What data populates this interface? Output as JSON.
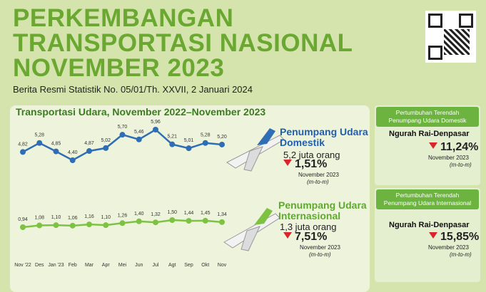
{
  "header": {
    "title_lines": [
      "PERKEMBANGAN",
      "TRANSPORTASI NASIONAL",
      "NOVEMBER 2023"
    ],
    "subtitle": "Berita Resmi Statistik No. 05/01/Th. XXVII, 2 Januari 2024"
  },
  "chart_data": {
    "type": "line",
    "title": "Transportasi Udara, November 2022–November 2023",
    "categories": [
      "Nov '22",
      "Des",
      "Jan '23",
      "Feb",
      "Mar",
      "Apr",
      "Mei",
      "Jun",
      "Jul",
      "Agt",
      "Sep",
      "Okt",
      "Nov"
    ],
    "series": [
      {
        "name": "Penumpang Udara Domestik",
        "color": "#2f6db5",
        "values": [
          4.82,
          5.28,
          4.85,
          4.4,
          4.87,
          5.02,
          5.7,
          5.46,
          5.96,
          5.21,
          5.01,
          5.28,
          5.2
        ],
        "value_labels": [
          "4,82",
          "5,28",
          "4,85",
          "4,40",
          "4,87",
          "5,02",
          "5,70",
          "5,46",
          "5,96",
          "5,21",
          "5,01",
          "5,28",
          "5,20"
        ]
      },
      {
        "name": "Penumpang Udara Internasional",
        "color": "#7dc242",
        "values": [
          0.94,
          1.08,
          1.1,
          1.06,
          1.16,
          1.1,
          1.26,
          1.4,
          1.32,
          1.5,
          1.44,
          1.45,
          1.34
        ],
        "value_labels": [
          "0,94",
          "1,08",
          "1,10",
          "1,06",
          "1,16",
          "1,10",
          "1,26",
          "1,40",
          "1,32",
          "1,50",
          "1,44",
          "1,45",
          "1,34"
        ]
      }
    ]
  },
  "summaries": [
    {
      "amount": "5,2 juta orang",
      "change": "1,51%",
      "period": "November 2023",
      "basis": "(m-to-m)"
    },
    {
      "amount": "1,3 juta orang",
      "change": "7,51%",
      "period": "November 2023",
      "basis": "(m-to-m)"
    }
  ],
  "cards": [
    {
      "heading": "Pertumbuhan Terendah Penumpang Udara Domestik",
      "airport": "Ngurah Rai-Denpasar",
      "change": "11,24%",
      "period": "November 2023",
      "basis": "(m-to-m)"
    },
    {
      "heading": "Pertumbuhan Terendah Penumpang Udara Internasional",
      "airport": "Ngurah Rai-Denpasar",
      "change": "15,85%",
      "period": "November 2023",
      "basis": "(m-to-m)"
    }
  ]
}
